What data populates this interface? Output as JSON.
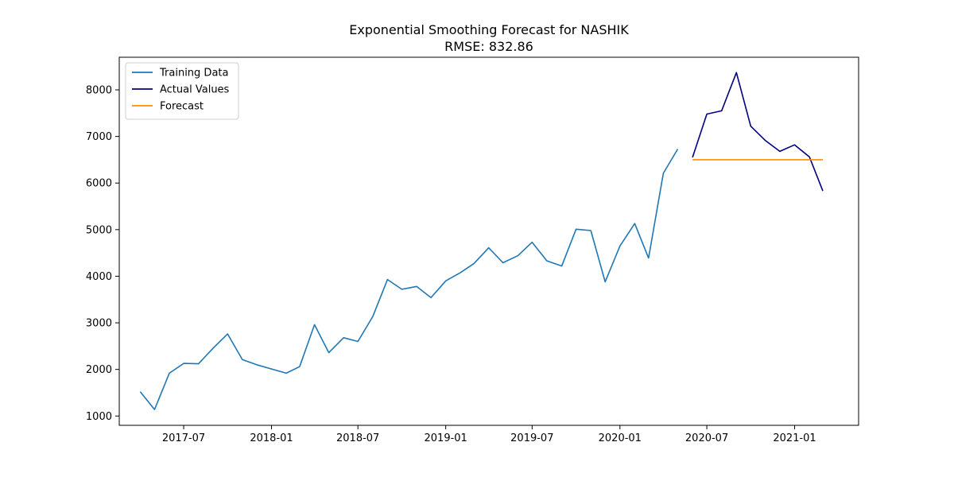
{
  "chart_data": {
    "type": "line",
    "title": "Exponential Smoothing Forecast for NASHIK",
    "subtitle": "RMSE: 832.86",
    "xlabel": "",
    "ylabel": "",
    "x_ticks": [
      "2017-07",
      "2018-01",
      "2018-07",
      "2019-01",
      "2019-07",
      "2020-01",
      "2020-07",
      "2021-01"
    ],
    "y_ticks": [
      1000,
      2000,
      3000,
      4000,
      5000,
      6000,
      7000,
      8000
    ],
    "xlim": [
      "2017-02-16",
      "2021-05-15"
    ],
    "ylim": [
      800,
      8700
    ],
    "grid": false,
    "legend_position": "top-left",
    "series": [
      {
        "name": "Training Data",
        "color": "#1f77b4",
        "x": [
          "2017-04-01",
          "2017-05-01",
          "2017-06-01",
          "2017-07-01",
          "2017-08-01",
          "2017-09-01",
          "2017-10-01",
          "2017-11-01",
          "2017-12-01",
          "2018-01-01",
          "2018-02-01",
          "2018-03-01",
          "2018-04-01",
          "2018-05-01",
          "2018-06-01",
          "2018-07-01",
          "2018-08-01",
          "2018-09-01",
          "2018-10-01",
          "2018-11-01",
          "2018-12-01",
          "2019-01-01",
          "2019-02-01",
          "2019-03-01",
          "2019-04-01",
          "2019-05-01",
          "2019-06-01",
          "2019-07-01",
          "2019-08-01",
          "2019-09-01",
          "2019-10-01",
          "2019-11-01",
          "2019-12-01",
          "2020-01-01",
          "2020-02-01",
          "2020-03-01",
          "2020-04-01",
          "2020-05-01"
        ],
        "values": [
          1520,
          1140,
          1920,
          2130,
          2120,
          2460,
          2760,
          2210,
          2100,
          2010,
          1920,
          2060,
          2960,
          2360,
          2680,
          2600,
          3130,
          3930,
          3720,
          3780,
          3540,
          3900,
          4080,
          4270,
          4610,
          4290,
          4440,
          4730,
          4330,
          4220,
          5010,
          4980,
          3880,
          4650,
          5130,
          4390,
          6210,
          6730
        ]
      },
      {
        "name": "Actual Values",
        "color": "#00007f",
        "x": [
          "2020-06-01",
          "2020-07-01",
          "2020-08-01",
          "2020-09-01",
          "2020-10-01",
          "2020-11-01",
          "2020-12-01",
          "2021-01-01",
          "2021-02-01",
          "2021-03-01"
        ],
        "values": [
          6550,
          7480,
          7550,
          8370,
          7220,
          6910,
          6680,
          6820,
          6560,
          5830
        ]
      },
      {
        "name": "Forecast",
        "color": "#ff8c00",
        "x": [
          "2020-06-01",
          "2020-07-01",
          "2020-08-01",
          "2020-09-01",
          "2020-10-01",
          "2020-11-01",
          "2020-12-01",
          "2021-01-01",
          "2021-02-01",
          "2021-03-01"
        ],
        "values": [
          6500,
          6500,
          6500,
          6500,
          6500,
          6500,
          6500,
          6500,
          6500,
          6500
        ]
      }
    ]
  }
}
